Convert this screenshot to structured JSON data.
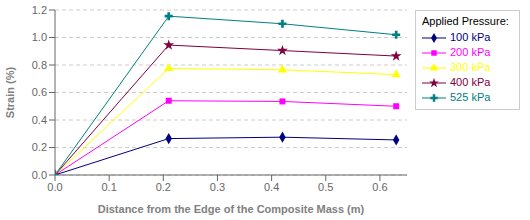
{
  "chart_data": {
    "type": "line",
    "xlabel": "Distance from the Edge of the Composite Mass (m)",
    "ylabel": "Strain (%)",
    "legend_title": "Applied Pressure:",
    "x": [
      0.0,
      0.21,
      0.42,
      0.63
    ],
    "series": [
      {
        "name": "100 kPa",
        "color": "#000080",
        "marker": "diamond",
        "values": [
          0.0,
          0.265,
          0.275,
          0.255
        ]
      },
      {
        "name": "200 kPa",
        "color": "#FF00FF",
        "marker": "square",
        "values": [
          0.0,
          0.54,
          0.535,
          0.5
        ]
      },
      {
        "name": "300 kPa",
        "color": "#FFFF00",
        "marker": "triangle",
        "values": [
          0.0,
          0.775,
          0.765,
          0.73
        ]
      },
      {
        "name": "400 kPa",
        "color": "#800040",
        "marker": "star",
        "values": [
          0.0,
          0.945,
          0.905,
          0.865
        ]
      },
      {
        "name": "525 kPa",
        "color": "#008080",
        "marker": "plus",
        "values": [
          0.0,
          1.155,
          1.1,
          1.02
        ]
      }
    ],
    "xlim": [
      0.0,
      0.65
    ],
    "ylim": [
      0.0,
      1.2
    ],
    "xticks": [
      {
        "value": 0,
        "label": "0.0"
      },
      0.1,
      0.2,
      0.3,
      0.4,
      0.5,
      0.6
    ],
    "yticks": [
      {
        "value": 0,
        "label": "0.0"
      },
      0.2,
      0.4,
      0.6,
      0.8,
      {
        "value": 1,
        "label": "1.0"
      },
      1.2
    ],
    "grid": true,
    "legend": "right"
  }
}
